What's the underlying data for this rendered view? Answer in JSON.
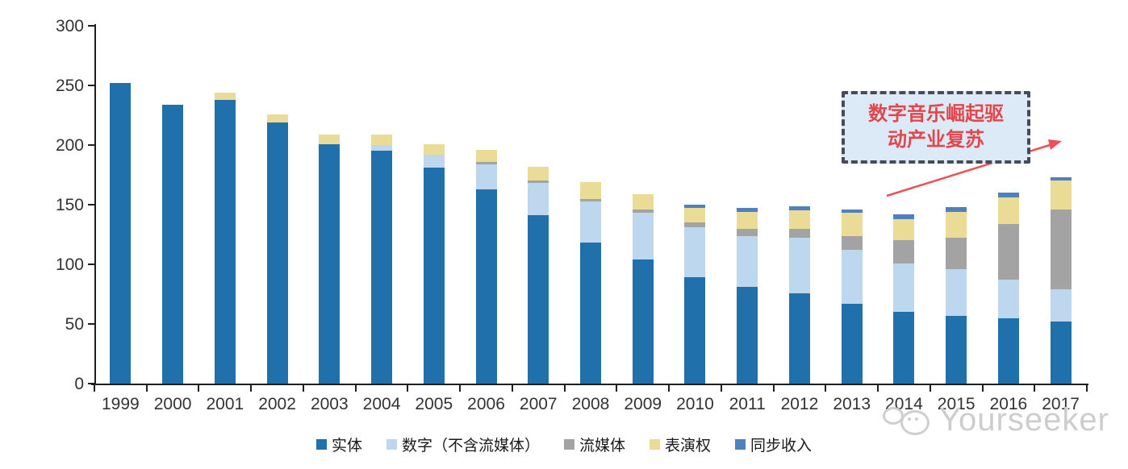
{
  "chart_data": {
    "type": "bar",
    "stacked": true,
    "title": "",
    "xlabel": "",
    "ylabel": "",
    "ylim": [
      0,
      300
    ],
    "yticks": [
      0,
      50,
      100,
      150,
      200,
      250,
      300
    ],
    "grid": false,
    "legend_position": "bottom",
    "categories": [
      "1999",
      "2000",
      "2001",
      "2002",
      "2003",
      "2004",
      "2005",
      "2006",
      "2007",
      "2008",
      "2009",
      "2010",
      "2011",
      "2012",
      "2013",
      "2014",
      "2015",
      "2016",
      "2017"
    ],
    "series": [
      {
        "key": "physical",
        "name": "实体",
        "color": "#2070AC",
        "values": [
          252,
          234,
          238,
          219,
          201,
          195,
          181,
          163,
          141,
          118,
          104,
          89,
          81,
          76,
          67,
          60,
          57,
          55,
          52
        ]
      },
      {
        "key": "digital-ex-stream",
        "name": "数字（不含流媒体）",
        "color": "#BDD7EE",
        "values": [
          0,
          0,
          0,
          0,
          0,
          5,
          11,
          21,
          27,
          35,
          39,
          42,
          43,
          46,
          45,
          41,
          39,
          32,
          27
        ]
      },
      {
        "key": "streaming",
        "name": "流媒体",
        "color": "#A3A3A3",
        "values": [
          0,
          0,
          0,
          0,
          0,
          0,
          0,
          2,
          2,
          2,
          3,
          4,
          6,
          8,
          12,
          19,
          26,
          47,
          67
        ]
      },
      {
        "key": "performance",
        "name": "表演权",
        "color": "#EADB96",
        "values": [
          0,
          0,
          6,
          7,
          8,
          9,
          9,
          10,
          12,
          14,
          13,
          12,
          14,
          15,
          19,
          18,
          22,
          22,
          24
        ]
      },
      {
        "key": "sync",
        "name": "同步收入",
        "color": "#4E81BD",
        "values": [
          0,
          0,
          0,
          0,
          0,
          0,
          0,
          0,
          0,
          0,
          0,
          3,
          3,
          4,
          3,
          4,
          4,
          4,
          3
        ]
      }
    ]
  },
  "annotation": {
    "line1": "数字音乐崛起驱",
    "line2": "动产业复苏",
    "text_color": "#E2474B",
    "border_color": "#464B55",
    "fill_color": "#DCE9F6",
    "arrow_color": "#EA5255"
  },
  "watermark": {
    "text": "Yourseeker"
  }
}
